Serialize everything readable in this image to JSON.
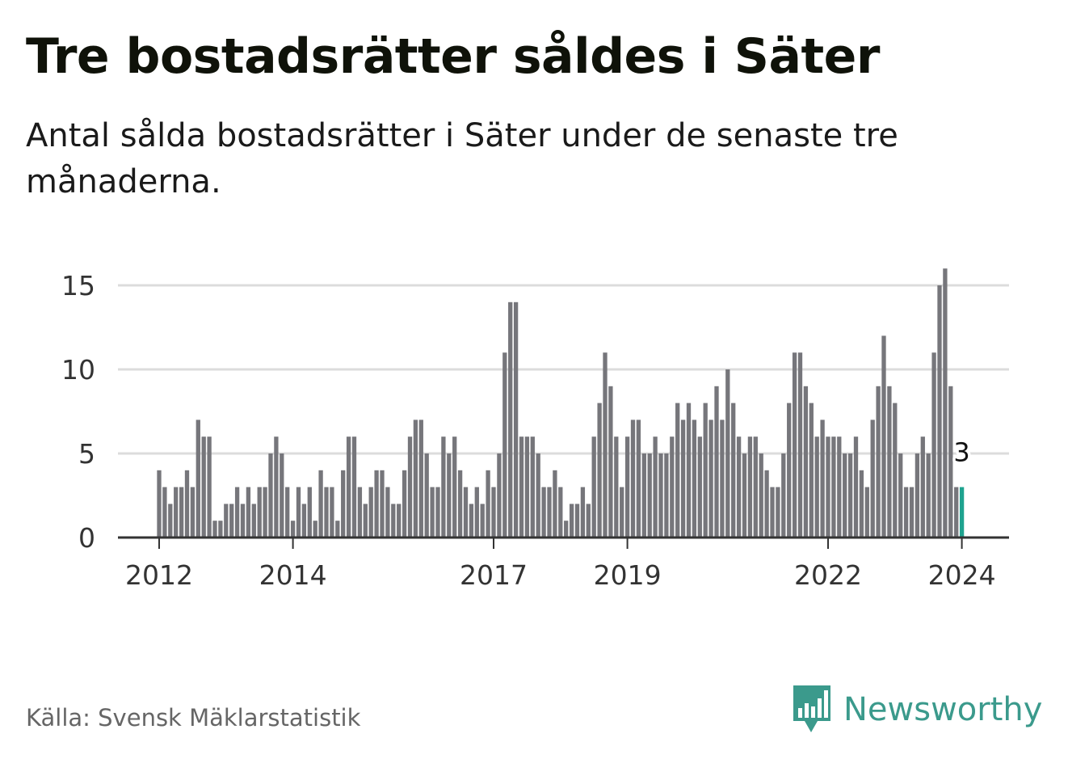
{
  "header": {
    "title": "Tre bostadsrätter såldes i Säter",
    "subtitle": "Antal sålda bostadsrätter i Säter under de senaste tre månaderna."
  },
  "footer": {
    "source": "Källa: Svensk Mäklarstatistik",
    "brand": "Newsworthy",
    "brand_icon": "bar-chart-speech-bubble-icon"
  },
  "colors": {
    "bar": "#76767b",
    "highlight": "#1fa38f",
    "grid": "#dcdcdc",
    "axis": "#333333",
    "brand": "#3b9a8c"
  },
  "chart_data": {
    "type": "bar",
    "title": "Tre bostadsrätter såldes i Säter",
    "xlabel": "",
    "ylabel": "",
    "ylim": [
      0,
      16
    ],
    "yticks": [
      0,
      5,
      10,
      15
    ],
    "xticks": [
      {
        "label": "2012",
        "index": 0
      },
      {
        "label": "2014",
        "index": 24
      },
      {
        "label": "2017",
        "index": 60
      },
      {
        "label": "2019",
        "index": 84
      },
      {
        "label": "2022",
        "index": 120
      },
      {
        "label": "2024",
        "index": 144
      }
    ],
    "first_period": "2012-01",
    "period": "month",
    "values": [
      4,
      3,
      2,
      3,
      3,
      4,
      3,
      7,
      6,
      6,
      1,
      1,
      2,
      2,
      3,
      2,
      3,
      2,
      3,
      3,
      5,
      6,
      5,
      3,
      1,
      3,
      2,
      3,
      1,
      4,
      3,
      3,
      1,
      4,
      6,
      6,
      3,
      2,
      3,
      4,
      4,
      3,
      2,
      2,
      4,
      6,
      7,
      7,
      5,
      3,
      3,
      6,
      5,
      6,
      4,
      3,
      2,
      3,
      2,
      4,
      3,
      5,
      11,
      14,
      14,
      6,
      6,
      6,
      5,
      3,
      3,
      4,
      3,
      1,
      2,
      2,
      3,
      2,
      6,
      8,
      11,
      9,
      6,
      3,
      6,
      7,
      7,
      5,
      5,
      6,
      5,
      5,
      6,
      8,
      7,
      8,
      7,
      6,
      8,
      7,
      9,
      7,
      10,
      8,
      6,
      5,
      6,
      6,
      5,
      4,
      3,
      3,
      5,
      8,
      11,
      11,
      9,
      8,
      6,
      7,
      6,
      6,
      6,
      5,
      5,
      6,
      4,
      3,
      7,
      9,
      12,
      9,
      8,
      5,
      3,
      3,
      5,
      6,
      5,
      11,
      15,
      16,
      9,
      3,
      3
    ],
    "highlight": {
      "index": 144,
      "label": "3",
      "value": 3
    }
  }
}
